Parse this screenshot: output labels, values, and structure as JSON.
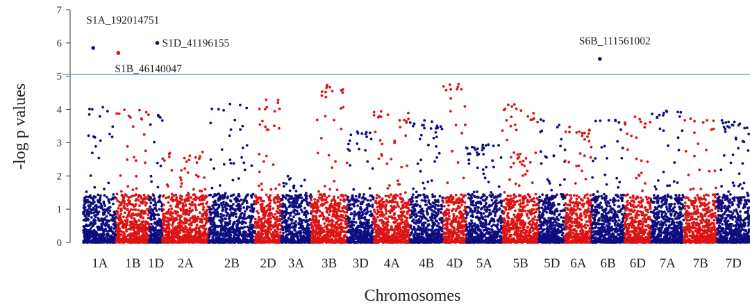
{
  "chart_data": {
    "type": "scatter",
    "xlabel": "Chromosomes",
    "ylabel": "-log p  values",
    "ylim": [
      0,
      7
    ],
    "yticks": [
      "0",
      "1",
      "2",
      "3",
      "4",
      "5",
      "6",
      "7"
    ],
    "threshold": 5.05,
    "colors": {
      "odd": "#0d0d80",
      "even": "#dc1414",
      "threshold": "#5b9bd5"
    },
    "categories": [
      "1A",
      "1B",
      "1D",
      "2A",
      "2B",
      "2D",
      "3A",
      "3B",
      "3D",
      "4A",
      "4B",
      "4D",
      "5A",
      "5B",
      "5D",
      "6A",
      "6B",
      "6D",
      "7A",
      "7B",
      "7D"
    ],
    "category_ranges": [
      [
        0,
        100
      ],
      [
        100,
        200
      ],
      [
        200,
        240
      ],
      [
        240,
        380
      ],
      [
        380,
        520
      ],
      [
        520,
        600
      ],
      [
        600,
        690
      ],
      [
        690,
        800
      ],
      [
        800,
        880
      ],
      [
        880,
        990
      ],
      [
        990,
        1090
      ],
      [
        1090,
        1160
      ],
      [
        1160,
        1270
      ],
      [
        1270,
        1380
      ],
      [
        1380,
        1460
      ],
      [
        1460,
        1540
      ],
      [
        1540,
        1640
      ],
      [
        1640,
        1720
      ],
      [
        1720,
        1820
      ],
      [
        1820,
        1920
      ],
      [
        1920,
        2020
      ]
    ],
    "max_values": [
      4.15,
      4.0,
      3.9,
      2.75,
      4.2,
      4.3,
      2.0,
      4.75,
      3.35,
      3.95,
      3.7,
      4.88,
      2.95,
      4.15,
      3.7,
      3.5,
      3.7,
      3.8,
      4.05,
      3.75,
      3.7
    ],
    "peaks": [
      {
        "chr": "1A",
        "x": 30,
        "y": 5.85,
        "label": "S1A_192014751"
      },
      {
        "chr": "1B",
        "x": 106,
        "y": 5.7,
        "label": "S1B_46140047"
      },
      {
        "chr": "1D",
        "x": 224,
        "y": 6.0,
        "label": "S1D_41196155"
      },
      {
        "chr": "6B",
        "x": 1565,
        "y": 5.52,
        "label": "S6B_111561002"
      }
    ]
  }
}
